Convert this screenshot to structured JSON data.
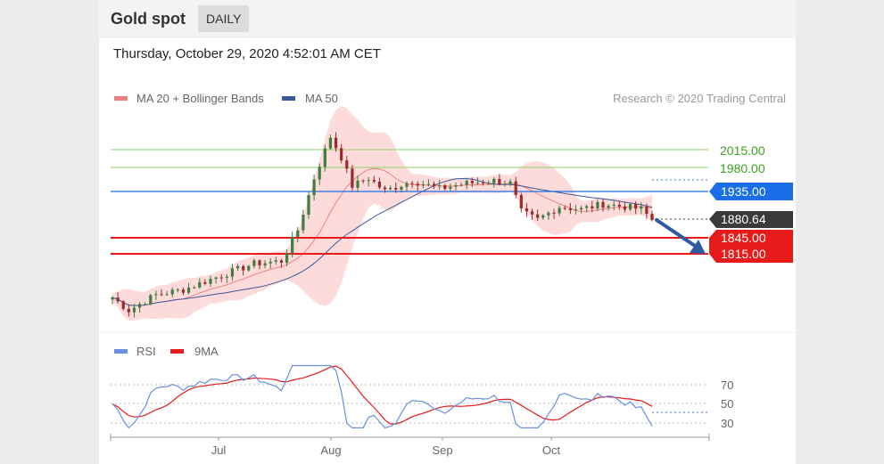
{
  "header": {
    "title": "Gold spot",
    "timeframe": "DAILY",
    "datetime": "Thursday, October 29, 2020 4:52:01 AM CET"
  },
  "colors": {
    "ma20": "#f08080",
    "band": "#fdd5d5",
    "ma50": "#3b5998",
    "bull": "#3f7d3f",
    "bear": "#9c2a2a",
    "resistance": "#8fd16a",
    "resistance_text": "#3ca021",
    "pivot": "#1a6ee8",
    "support": "#e81a1a",
    "current": "#3a3a3a",
    "arrow": "#2f5aa0",
    "rsi": "#6a8fe0",
    "rsi_ma": "#e81a1a"
  },
  "chart_data": [
    {
      "type": "candlestick",
      "legend": [
        {
          "name": "MA 20 + Bollinger Bands",
          "color": "#f08080"
        },
        {
          "name": "MA 50",
          "color": "#3b5998"
        }
      ],
      "legend_position": "top-left",
      "credit": "Research © 2020 Trading Central",
      "ylim": [
        1655,
        2080
      ],
      "price_lines": [
        {
          "label": "2015.00",
          "value": 2015,
          "kind": "resistance"
        },
        {
          "label": "1980.00",
          "value": 1980,
          "kind": "resistance"
        },
        {
          "label": "1935.00",
          "value": 1935,
          "kind": "pivot"
        },
        {
          "label": "1880.64",
          "value": 1880.64,
          "kind": "current"
        },
        {
          "label": "1845.00",
          "value": 1845,
          "kind": "support"
        },
        {
          "label": "1815.00",
          "value": 1815,
          "kind": "support"
        }
      ],
      "forecast_arrow": {
        "from": 1880,
        "to": 1825
      }
    },
    {
      "type": "line",
      "legend": [
        {
          "name": "RSI",
          "color": "#6a8fe0"
        },
        {
          "name": "9MA",
          "color": "#e81a1a"
        }
      ],
      "legend_position": "top-left",
      "ylim": [
        20,
        100
      ],
      "y_ticks": [
        {
          "label": "70",
          "value": 70
        },
        {
          "label": "50",
          "value": 50
        },
        {
          "label": "30",
          "value": 30
        }
      ]
    }
  ],
  "x_axis": {
    "ticks": [
      {
        "label": "Jul",
        "index": 14
      },
      {
        "label": "Aug",
        "index": 37
      },
      {
        "label": "Sep",
        "index": 59
      },
      {
        "label": "Oct",
        "index": 81
      }
    ]
  }
}
